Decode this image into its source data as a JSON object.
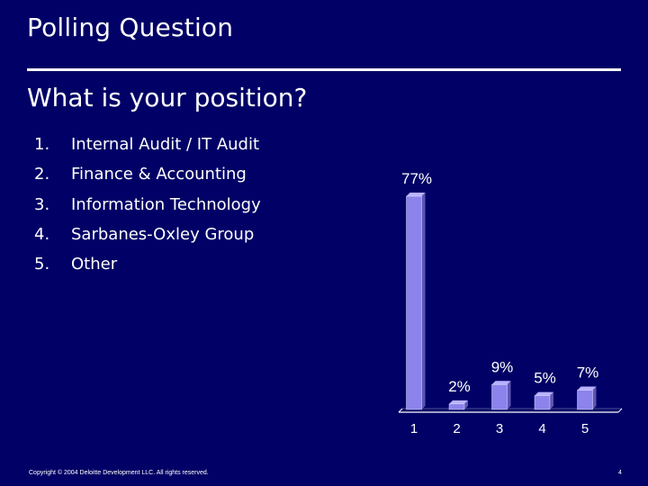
{
  "slide": {
    "title": "Polling Question",
    "question": "What is your position?",
    "options": [
      {
        "num": "1.",
        "label": "Internal Audit / IT Audit"
      },
      {
        "num": "2.",
        "label": "Finance & Accounting"
      },
      {
        "num": "3.",
        "label": "Information Technology"
      },
      {
        "num": "4.",
        "label": "Sarbanes-Oxley Group"
      },
      {
        "num": "5.",
        "label": "Other"
      }
    ],
    "footer": "Copyright © 2004 Deloitte Development LLC. All rights reserved.",
    "page_number": "4"
  },
  "colors": {
    "background": "#000066",
    "bar_front": "#8c84ec",
    "bar_side": "#5c54b4",
    "bar_top": "#b8b2ff",
    "axis": "#ffffff"
  },
  "chart_data": {
    "type": "bar",
    "categories": [
      "1",
      "2",
      "3",
      "4",
      "5"
    ],
    "values": [
      77,
      2,
      9,
      5,
      7
    ],
    "data_labels": [
      "77%",
      "2%",
      "9%",
      "5%",
      "7%"
    ],
    "title": "",
    "xlabel": "",
    "ylabel": "",
    "ylim": [
      0,
      77
    ],
    "grid": false,
    "legend": "none"
  }
}
